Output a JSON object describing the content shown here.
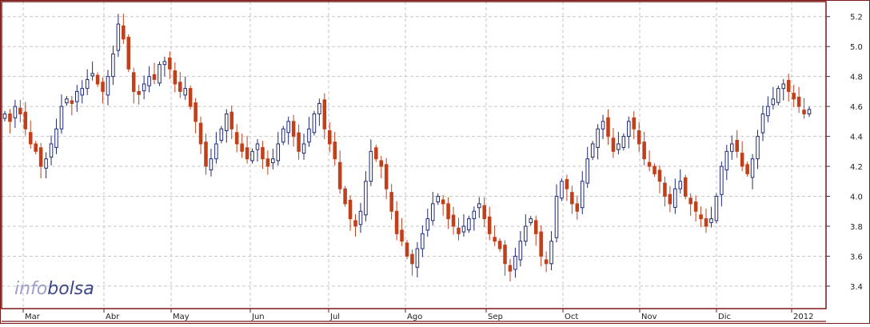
{
  "chart_data": {
    "type": "candlestick",
    "title": "",
    "xlabel": "",
    "ylabel": "",
    "ylim": [
      3.25,
      5.3
    ],
    "y_ticks": [
      3.4,
      3.6,
      3.8,
      4.0,
      4.2,
      4.4,
      4.6,
      4.8,
      5.0,
      5.2
    ],
    "y_axis_position": "right",
    "grid": true,
    "legend": "none",
    "x_tick_labels": [
      "Mar",
      "Abr",
      "May",
      "Jun",
      "Jul",
      "Ago",
      "Sep",
      "Oct",
      "Nov",
      "Dic",
      "2012"
    ],
    "colors": {
      "up": "#1f2a78",
      "down": "#c1401b",
      "frame": "#7a1818",
      "grid": "#c6c6c6"
    },
    "watermark": {
      "part1": "info",
      "part2": "bolsa"
    },
    "period_start": "2011-02-25",
    "closes": [
      4.55,
      4.5,
      4.6,
      4.55,
      4.45,
      4.35,
      4.3,
      4.2,
      4.25,
      4.35,
      4.45,
      4.6,
      4.65,
      4.62,
      4.7,
      4.72,
      4.78,
      4.82,
      4.75,
      4.7,
      4.8,
      4.95,
      5.15,
      5.05,
      4.85,
      4.7,
      4.68,
      4.75,
      4.8,
      4.78,
      4.88,
      4.9,
      4.85,
      4.75,
      4.7,
      4.72,
      4.6,
      4.5,
      4.35,
      4.2,
      4.25,
      4.35,
      4.45,
      4.55,
      4.45,
      4.35,
      4.3,
      4.25,
      4.3,
      4.35,
      4.25,
      4.2,
      4.25,
      4.35,
      4.45,
      4.5,
      4.4,
      4.3,
      4.35,
      4.45,
      4.55,
      4.62,
      4.45,
      4.35,
      4.25,
      4.05,
      3.95,
      3.85,
      3.8,
      3.9,
      4.1,
      4.3,
      4.25,
      4.2,
      4.05,
      3.9,
      3.75,
      3.7,
      3.6,
      3.55,
      3.65,
      3.75,
      3.85,
      3.95,
      4.0,
      3.95,
      3.85,
      3.8,
      3.75,
      3.8,
      3.85,
      3.9,
      3.95,
      3.85,
      3.75,
      3.7,
      3.65,
      3.55,
      3.5,
      3.6,
      3.7,
      3.8,
      3.85,
      3.75,
      3.6,
      3.55,
      3.7,
      4.0,
      4.1,
      4.05,
      3.95,
      3.9,
      4.1,
      4.25,
      4.35,
      4.45,
      4.5,
      4.4,
      4.3,
      4.35,
      4.4,
      4.5,
      4.45,
      4.35,
      4.25,
      4.2,
      4.15,
      4.1,
      4.0,
      3.95,
      4.05,
      4.1,
      4.0,
      3.95,
      3.9,
      3.85,
      3.8,
      3.85,
      4.0,
      4.2,
      4.3,
      4.35,
      4.3,
      4.2,
      4.15,
      4.25,
      4.4,
      4.55,
      4.6,
      4.65,
      4.72,
      4.75,
      4.7,
      4.65,
      4.6,
      4.55,
      4.58
    ]
  }
}
